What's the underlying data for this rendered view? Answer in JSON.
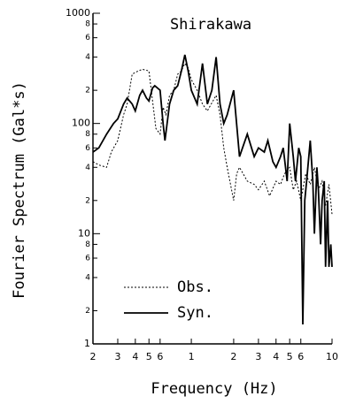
{
  "chart_data": {
    "type": "line",
    "title": "Shirakawa",
    "x_label": "Frequency (Hz)",
    "y_label": "Fourier Spectrum (Gal*s)",
    "log_x": true,
    "log_y": true,
    "xlim": [
      0.2,
      10
    ],
    "ylim": [
      1,
      1000
    ],
    "xticks": [
      {
        "value": 0.2,
        "label": "2"
      },
      {
        "value": 0.3,
        "label": "3"
      },
      {
        "value": 0.4,
        "label": "4"
      },
      {
        "value": 0.5,
        "label": "5"
      },
      {
        "value": 0.6,
        "label": "6"
      },
      1,
      2,
      3,
      4,
      5,
      6,
      10
    ],
    "yticks": [
      1,
      {
        "value": 2,
        "label": "2"
      },
      {
        "value": 4,
        "label": "4"
      },
      {
        "value": 6,
        "label": "6"
      },
      {
        "value": 8,
        "label": "8"
      },
      10,
      {
        "value": 20,
        "label": "2"
      },
      {
        "value": 40,
        "label": "4"
      },
      {
        "value": 60,
        "label": "6"
      },
      {
        "value": 80,
        "label": "8"
      },
      100,
      {
        "value": 200,
        "label": "2"
      },
      {
        "value": 400,
        "label": "4"
      },
      {
        "value": 600,
        "label": "6"
      },
      {
        "value": 800,
        "label": "8"
      },
      1000
    ],
    "legend": "lower left",
    "series": [
      {
        "name": "Obs.",
        "color": "#000000",
        "linestyle": "dotted",
        "x": [
          0.2,
          0.22,
          0.25,
          0.27,
          0.3,
          0.33,
          0.35,
          0.38,
          0.42,
          0.45,
          0.5,
          0.53,
          0.56,
          0.6,
          0.63,
          0.66,
          0.7,
          0.75,
          0.8,
          0.85,
          0.9,
          0.95,
          1.0,
          1.1,
          1.2,
          1.3,
          1.5,
          1.6,
          1.7,
          1.8,
          2.0,
          2.1,
          2.2,
          2.5,
          2.8,
          3.0,
          3.3,
          3.6,
          4.0,
          4.3,
          4.6,
          5.0,
          5.3,
          5.6,
          6.0,
          6.5,
          7.0,
          7.5,
          8.0,
          8.5,
          9.0,
          9.5,
          10
        ],
        "values": [
          45,
          42,
          40,
          55,
          70,
          120,
          150,
          280,
          300,
          310,
          300,
          160,
          90,
          80,
          140,
          120,
          180,
          200,
          280,
          300,
          350,
          320,
          250,
          200,
          150,
          130,
          180,
          120,
          60,
          40,
          20,
          35,
          40,
          30,
          28,
          25,
          30,
          22,
          30,
          28,
          35,
          40,
          25,
          30,
          20,
          35,
          28,
          40,
          25,
          30,
          18,
          28,
          15
        ]
      },
      {
        "name": "Syn.",
        "color": "#000000",
        "linestyle": "solid",
        "x": [
          0.2,
          0.22,
          0.25,
          0.28,
          0.3,
          0.33,
          0.35,
          0.38,
          0.4,
          0.43,
          0.45,
          0.48,
          0.5,
          0.53,
          0.55,
          0.6,
          0.63,
          0.65,
          0.7,
          0.75,
          0.8,
          0.85,
          0.9,
          0.95,
          1.0,
          1.1,
          1.2,
          1.3,
          1.4,
          1.5,
          1.6,
          1.7,
          1.8,
          2.0,
          2.2,
          2.5,
          2.8,
          3.0,
          3.3,
          3.5,
          3.8,
          4.0,
          4.3,
          4.5,
          4.8,
          5.0,
          5.3,
          5.5,
          5.8,
          6.0,
          6.2,
          6.4,
          6.6,
          7.0,
          7.3,
          7.5,
          7.8,
          8.0,
          8.3,
          8.5,
          8.8,
          9.0,
          9.3,
          9.5,
          9.8,
          10
        ],
        "values": [
          55,
          60,
          80,
          100,
          110,
          150,
          170,
          150,
          130,
          180,
          200,
          170,
          160,
          210,
          220,
          200,
          100,
          70,
          150,
          200,
          220,
          300,
          420,
          300,
          200,
          150,
          350,
          150,
          200,
          400,
          150,
          100,
          120,
          200,
          50,
          80,
          50,
          60,
          55,
          70,
          45,
          40,
          50,
          60,
          30,
          100,
          50,
          30,
          60,
          50,
          1.5,
          20,
          30,
          70,
          30,
          10,
          40,
          25,
          8,
          20,
          30,
          5,
          20,
          5,
          8,
          5
        ]
      }
    ]
  }
}
